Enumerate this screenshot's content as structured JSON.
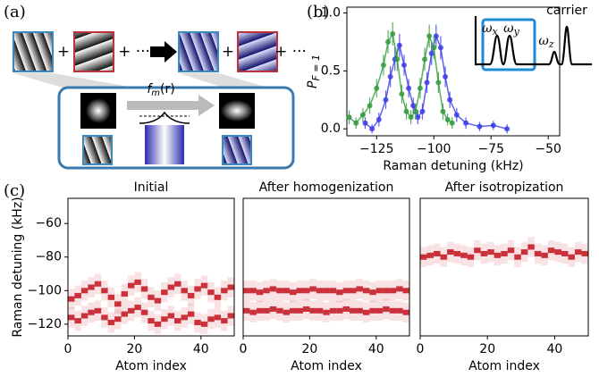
{
  "panel_labels": [
    "(a)",
    "(b)",
    "(c)"
  ],
  "diagram": {
    "plus": "+",
    "plus_ellipsis": "+ ···",
    "function_label": {
      "name": "f",
      "sub": "m",
      "arg": "(r)"
    }
  },
  "chart_data": [
    {
      "type": "scatter",
      "xlabel": "Raman detuning (kHz)",
      "ylabel": {
        "main": "P",
        "sub": "F = 1"
      },
      "xlim": [
        -138,
        -45
      ],
      "ylim": [
        -0.06,
        1.05
      ],
      "xticks": [
        {
          "value": -125,
          "label": "−125"
        },
        {
          "value": -100,
          "label": "−100"
        },
        {
          "value": -75,
          "label": "−75"
        },
        {
          "value": -50,
          "label": "−50"
        }
      ],
      "yticks": [
        {
          "value": 0,
          "label": "0.0"
        },
        {
          "value": 0.5,
          "label": "0.5"
        },
        {
          "value": 1,
          "label": "1.0"
        }
      ],
      "annotations": [
        {
          "text": "ω",
          "sub": "x"
        },
        {
          "text": "ω",
          "sub": "y"
        },
        {
          "text": "ω",
          "sub": "z"
        },
        {
          "text": "carrier"
        }
      ],
      "series": [
        {
          "color": "#3b3be6",
          "x": [
            -130,
            -127,
            -124,
            -121,
            -119,
            -117,
            -115,
            -113,
            -111,
            -109,
            -107,
            -105,
            -103,
            -101,
            -99,
            -97,
            -95,
            -93,
            -90,
            -86,
            -80,
            -74,
            -68
          ],
          "values": [
            0.05,
            0.0,
            0.08,
            0.25,
            0.45,
            0.6,
            0.72,
            0.55,
            0.35,
            0.2,
            0.1,
            0.15,
            0.4,
            0.65,
            0.8,
            0.7,
            0.45,
            0.25,
            0.12,
            0.05,
            0.02,
            0.03,
            0.0
          ],
          "errors": [
            0.05,
            0.04,
            0.06,
            0.08,
            0.09,
            0.1,
            0.1,
            0.09,
            0.08,
            0.07,
            0.06,
            0.07,
            0.09,
            0.1,
            0.1,
            0.1,
            0.09,
            0.07,
            0.06,
            0.05,
            0.04,
            0.04,
            0.04
          ]
        },
        {
          "color": "#2f9a3c",
          "x": [
            -137,
            -134,
            -131,
            -128,
            -125,
            -122,
            -120,
            -118,
            -116,
            -114,
            -112,
            -110,
            -108,
            -106,
            -104,
            -102,
            -100,
            -98,
            -96,
            -94,
            -92
          ],
          "values": [
            0.1,
            0.05,
            0.12,
            0.2,
            0.35,
            0.55,
            0.75,
            0.82,
            0.6,
            0.3,
            0.15,
            0.1,
            0.15,
            0.35,
            0.6,
            0.8,
            0.7,
            0.4,
            0.15,
            0.08,
            0.05
          ],
          "errors": [
            0.06,
            0.05,
            0.06,
            0.07,
            0.08,
            0.09,
            0.1,
            0.1,
            0.1,
            0.08,
            0.07,
            0.06,
            0.07,
            0.09,
            0.1,
            0.1,
            0.1,
            0.09,
            0.07,
            0.05,
            0.05
          ]
        }
      ]
    },
    {
      "type": "heatmap",
      "title": "Initial",
      "xlabel": "Atom index",
      "ylabel": "Raman detuning (kHz)",
      "xlim": [
        0,
        50
      ],
      "ylim": [
        -127,
        -45
      ],
      "xticks": [
        0,
        20,
        40
      ],
      "yticks": [
        {
          "value": -120,
          "label": "−120"
        },
        {
          "value": -100,
          "label": "−100"
        },
        {
          "value": -80,
          "label": "−80"
        },
        {
          "value": -60,
          "label": "−60"
        }
      ],
      "color": "#c3121c",
      "x": [
        0,
        2,
        4,
        6,
        8,
        10,
        12,
        14,
        16,
        18,
        20,
        22,
        24,
        26,
        28,
        30,
        32,
        34,
        36,
        38,
        40,
        42,
        44,
        46,
        48
      ],
      "series": [
        {
          "values": [
            -105,
            -103,
            -100,
            -98,
            -96,
            -100,
            -104,
            -108,
            -102,
            -97,
            -95,
            -99,
            -104,
            -106,
            -101,
            -98,
            -96,
            -100,
            -103,
            -99,
            -97,
            -101,
            -104,
            -100,
            -98
          ]
        },
        {
          "values": [
            -116,
            -118,
            -115,
            -113,
            -112,
            -116,
            -119,
            -117,
            -114,
            -112,
            -110,
            -113,
            -118,
            -120,
            -117,
            -115,
            -118,
            -116,
            -114,
            -119,
            -120,
            -117,
            -116,
            -118,
            -115
          ]
        }
      ]
    },
    {
      "type": "heatmap",
      "title": "After homogenization",
      "xlabel": "Atom index",
      "xlim": [
        0,
        50
      ],
      "ylim": [
        -127,
        -45
      ],
      "xticks": [
        0,
        20,
        40
      ],
      "color": "#c3121c",
      "x": [
        0,
        2,
        4,
        6,
        8,
        10,
        12,
        14,
        16,
        18,
        20,
        22,
        24,
        26,
        28,
        30,
        32,
        34,
        36,
        38,
        40,
        42,
        44,
        46,
        48
      ],
      "series": [
        {
          "values": [
            -100,
            -100,
            -101,
            -100,
            -99,
            -100,
            -100,
            -101,
            -100,
            -100,
            -99,
            -100,
            -100,
            -100,
            -101,
            -100,
            -100,
            -99,
            -100,
            -101,
            -100,
            -100,
            -100,
            -99,
            -100
          ]
        },
        {
          "values": [
            -112,
            -113,
            -112,
            -112,
            -111,
            -112,
            -113,
            -112,
            -112,
            -111,
            -112,
            -112,
            -113,
            -112,
            -112,
            -111,
            -112,
            -112,
            -113,
            -112,
            -112,
            -111,
            -112,
            -112,
            -113
          ]
        }
      ]
    },
    {
      "type": "heatmap",
      "title": "After isotropization",
      "xlabel": "Atom index",
      "xlim": [
        0,
        50
      ],
      "ylim": [
        -127,
        -45
      ],
      "xticks": [
        0,
        20,
        40
      ],
      "color": "#c3121c",
      "x": [
        0,
        2,
        4,
        6,
        8,
        10,
        12,
        14,
        16,
        18,
        20,
        22,
        24,
        26,
        28,
        30,
        32,
        34,
        36,
        38,
        40,
        42,
        44,
        46,
        48
      ],
      "series": [
        {
          "values": [
            -80,
            -79,
            -78,
            -80,
            -77,
            -78,
            -79,
            -80,
            -76,
            -78,
            -77,
            -79,
            -78,
            -76,
            -80,
            -77,
            -74,
            -78,
            -79,
            -76,
            -77,
            -78,
            -80,
            -77,
            -78
          ]
        }
      ]
    }
  ]
}
